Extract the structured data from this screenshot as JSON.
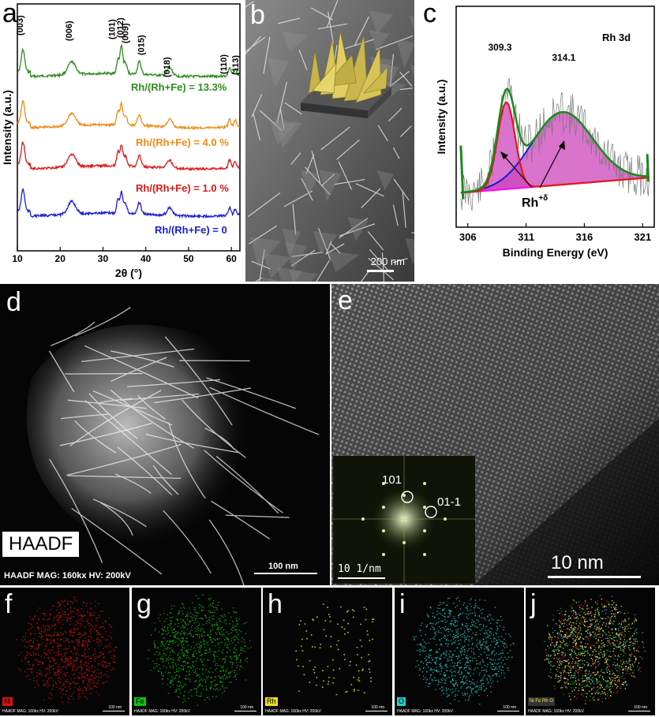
{
  "panel_a": {
    "label": "a",
    "ylabel": "Intensity (a.u.)",
    "xlabel": "2θ (°)",
    "xticks": [
      "10",
      "20",
      "30",
      "40",
      "50",
      "60"
    ],
    "peaks": [
      "(003)",
      "(006)",
      "(101)",
      "(012)",
      "(009)",
      "(015)",
      "(018)",
      "(110)",
      "(113)"
    ],
    "series_labels": [
      "Rh/(Rh+Fe) = 13.3%",
      "Rh/(Rh+Fe) = 4.0 %",
      "Rh/(Rh+Fe) = 1.0 %",
      "Rh/(Rh+Fe) = 0"
    ],
    "colors": [
      "#2e8b1e",
      "#f08c14",
      "#e01818",
      "#1c1cd8"
    ]
  },
  "panel_b": {
    "label": "b",
    "scale": "200 nm"
  },
  "panel_c": {
    "label": "c",
    "title": "Rh 3d",
    "peak1": "309.3",
    "peak2": "314.1",
    "ylabel": "Intensity (a.u.)",
    "xlabel": "Binding Energy (eV)",
    "xticks": [
      "306",
      "311",
      "316",
      "321"
    ],
    "annot": "Rh",
    "annot_sup": "+δ"
  },
  "panel_d": {
    "label": "d",
    "mode": "HAADF",
    "footer": "HAADF   MAG: 160kx   HV: 200kV",
    "scale": "100 nm"
  },
  "panel_e": {
    "label": "e",
    "fft1": "101",
    "fft2": "01-1",
    "fft_scale": "10  1/nm",
    "scale": "10 nm"
  },
  "maps": [
    {
      "label": "f",
      "element": "Ni",
      "color": "#e01010"
    },
    {
      "label": "g",
      "element": "Fe",
      "color": "#10c010"
    },
    {
      "label": "h",
      "element": "Rh",
      "color": "#e8e020"
    },
    {
      "label": "i",
      "element": "O",
      "color": "#20d0d0"
    },
    {
      "label": "j",
      "element": "Ni Fe Rh O",
      "color": "#ffffff"
    }
  ],
  "map_footer": "HAADF  MAG: 160kx  HV: 200kV",
  "map_scale": "100 nm",
  "chart_data": [
    {
      "type": "line",
      "title": "",
      "xlabel": "2θ (°)",
      "ylabel": "Intensity (a.u.)",
      "xlim": [
        10,
        62
      ],
      "xticks": [
        10,
        20,
        30,
        40,
        50,
        60
      ],
      "peaks_2theta": [
        11.3,
        22.7,
        33.5,
        34.3,
        35.2,
        38.5,
        45.6,
        59.6,
        60.9
      ],
      "peak_labels": [
        "(003)",
        "(006)",
        "(101)",
        "(012)",
        "(009)",
        "(015)",
        "(018)",
        "(110)",
        "(113)"
      ],
      "series": [
        {
          "name": "Rh/(Rh+Fe) = 13.3%"
        },
        {
          "name": "Rh/(Rh+Fe) = 4.0 %"
        },
        {
          "name": "Rh/(Rh+Fe) = 1.0 %"
        },
        {
          "name": "Rh/(Rh+Fe) = 0"
        }
      ]
    },
    {
      "type": "line",
      "title": "Rh 3d",
      "xlabel": "Binding Energy (eV)",
      "ylabel": "Intensity (a.u.)",
      "xlim": [
        305,
        322
      ],
      "xticks": [
        306,
        311,
        316,
        321
      ],
      "peaks": [
        309.3,
        314.1
      ]
    }
  ]
}
